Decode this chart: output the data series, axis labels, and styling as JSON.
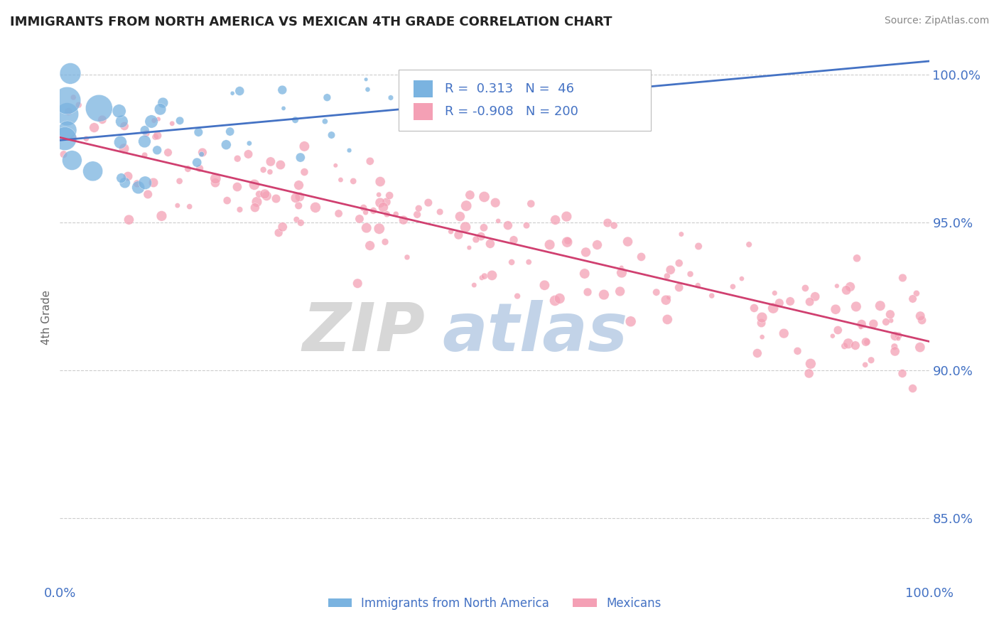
{
  "title": "IMMIGRANTS FROM NORTH AMERICA VS MEXICAN 4TH GRADE CORRELATION CHART",
  "source": "Source: ZipAtlas.com",
  "ylabel": "4th Grade",
  "xlim": [
    0.0,
    1.0
  ],
  "ylim": [
    0.828,
    1.008
  ],
  "yticks": [
    0.85,
    0.9,
    0.95,
    1.0
  ],
  "ytick_labels": [
    "85.0%",
    "90.0%",
    "95.0%",
    "100.0%"
  ],
  "xticks": [
    0.0,
    1.0
  ],
  "xtick_labels": [
    "0.0%",
    "100.0%"
  ],
  "blue_R": 0.313,
  "blue_N": 46,
  "pink_R": -0.908,
  "pink_N": 200,
  "blue_color": "#7ab3e0",
  "pink_color": "#f4a0b5",
  "blue_line_color": "#4472c4",
  "pink_line_color": "#d04070",
  "legend_label_blue": "Immigrants from North America",
  "legend_label_pink": "Mexicans",
  "watermark_zip": "ZIP",
  "watermark_atlas": "atlas",
  "watermark_zip_color": "#d0d0d0",
  "watermark_atlas_color": "#b8cce4",
  "background_color": "#ffffff",
  "grid_color": "#cccccc",
  "label_color": "#4472c4",
  "title_color": "#222222",
  "ylabel_color": "#666666",
  "source_color": "#888888"
}
